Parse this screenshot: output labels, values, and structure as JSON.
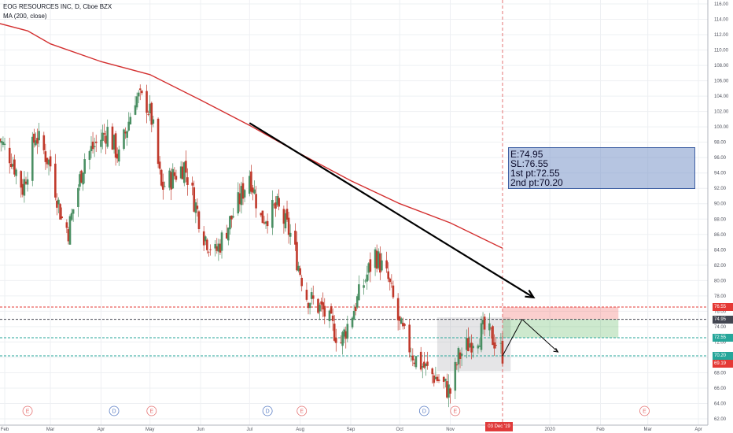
{
  "legend": {
    "title": "EOG RESOURCES INC, D, Cboe BZX",
    "indicator": "MA (200, close)"
  },
  "info_box": {
    "entry": "E:74.95",
    "stop": "SL:76.55",
    "pt1": "1st pt:72.55",
    "pt2": "2nd pt:70.20"
  },
  "date_flag": "03 Dec '19",
  "price_labels": [
    {
      "value": "76.55",
      "color": "#e53935"
    },
    {
      "value": "74.95",
      "color": "#434651"
    },
    {
      "value": "72.55",
      "color": "#26a69a"
    },
    {
      "value": "70.20",
      "color": "#26a69a"
    },
    {
      "value": "69.19",
      "color": "#e53935"
    }
  ],
  "colors": {
    "up": "#4a8f63",
    "down": "#c0392b",
    "ma": "#d32f2f",
    "grid": "#eef0f3"
  },
  "chart_data": {
    "type": "candlestick",
    "title": "EOG RESOURCES INC, D, Cboe BZX",
    "ylim": [
      62,
      116
    ],
    "y_ticks": [
      "62.00",
      "64.00",
      "66.00",
      "68.00",
      "70.00",
      "72.00",
      "74.00",
      "76.00",
      "78.00",
      "80.00",
      "82.00",
      "84.00",
      "86.00",
      "88.00",
      "90.00",
      "92.00",
      "94.00",
      "96.00",
      "98.00",
      "100.00",
      "102.00",
      "104.00",
      "106.00",
      "108.00",
      "110.00",
      "112.00",
      "114.00",
      "116.00"
    ],
    "x_ticks": [
      "Feb",
      "Mar",
      "Apr",
      "May",
      "Jun",
      "Jul",
      "Aug",
      "Sep",
      "Oct",
      "Nov",
      "2020",
      "Feb",
      "Mar",
      "Apr"
    ],
    "event_markers": [
      {
        "label": "E",
        "kind": "earnings"
      },
      {
        "label": "D",
        "kind": "dividend"
      },
      {
        "label": "E",
        "kind": "earnings"
      },
      {
        "label": "D",
        "kind": "dividend"
      },
      {
        "label": "E",
        "kind": "earnings"
      },
      {
        "label": "D",
        "kind": "dividend"
      },
      {
        "label": "E",
        "kind": "earnings"
      },
      {
        "label": "E",
        "kind": "earnings"
      }
    ],
    "price_path": [
      {
        "date": "2019-01-28",
        "close": 98.5
      },
      {
        "date": "2019-02-05",
        "close": 96.0
      },
      {
        "date": "2019-02-12",
        "close": 92.0
      },
      {
        "date": "2019-02-20",
        "close": 99.0
      },
      {
        "date": "2019-03-01",
        "close": 95.0
      },
      {
        "date": "2019-03-08",
        "close": 88.0
      },
      {
        "date": "2019-03-12",
        "close": 86.5
      },
      {
        "date": "2019-03-22",
        "close": 96.0
      },
      {
        "date": "2019-04-05",
        "close": 99.5
      },
      {
        "date": "2019-04-12",
        "close": 96.0
      },
      {
        "date": "2019-04-22",
        "close": 104.0
      },
      {
        "date": "2019-04-29",
        "close": 103.0
      },
      {
        "date": "2019-05-02",
        "close": 101.0
      },
      {
        "date": "2019-05-08",
        "close": 92.0
      },
      {
        "date": "2019-05-22",
        "close": 95.0
      },
      {
        "date": "2019-06-03",
        "close": 86.0
      },
      {
        "date": "2019-06-10",
        "close": 83.5
      },
      {
        "date": "2019-06-24",
        "close": 90.0
      },
      {
        "date": "2019-07-01",
        "close": 94.0
      },
      {
        "date": "2019-07-08",
        "close": 88.0
      },
      {
        "date": "2019-07-18",
        "close": 89.5
      },
      {
        "date": "2019-07-26",
        "close": 86.0
      },
      {
        "date": "2019-08-05",
        "close": 78.0
      },
      {
        "date": "2019-08-15",
        "close": 76.0
      },
      {
        "date": "2019-08-26",
        "close": 72.0
      },
      {
        "date": "2019-09-06",
        "close": 78.0
      },
      {
        "date": "2019-09-16",
        "close": 83.5
      },
      {
        "date": "2019-09-24",
        "close": 80.0
      },
      {
        "date": "2019-10-01",
        "close": 74.0
      },
      {
        "date": "2019-10-10",
        "close": 70.0
      },
      {
        "date": "2019-10-17",
        "close": 68.5
      },
      {
        "date": "2019-10-25",
        "close": 67.0
      },
      {
        "date": "2019-11-01",
        "close": 65.5
      },
      {
        "date": "2019-11-06",
        "close": 70.0
      },
      {
        "date": "2019-11-15",
        "close": 72.5
      },
      {
        "date": "2019-11-22",
        "close": 73.5
      },
      {
        "date": "2019-11-29",
        "close": 72.0
      },
      {
        "date": "2019-12-03",
        "close": 70.5
      }
    ],
    "moving_average": {
      "name": "MA (200, close)",
      "points": [
        {
          "date": "2019-01-28",
          "value": 113.5
        },
        {
          "date": "2019-02-15",
          "value": 112.5
        },
        {
          "date": "2019-03-01",
          "value": 110.8
        },
        {
          "date": "2019-04-01",
          "value": 108.5
        },
        {
          "date": "2019-05-01",
          "value": 106.8
        },
        {
          "date": "2019-06-01",
          "value": 103.5
        },
        {
          "date": "2019-07-01",
          "value": 100.2
        },
        {
          "date": "2019-08-01",
          "value": 96.5
        },
        {
          "date": "2019-09-01",
          "value": 93.0
        },
        {
          "date": "2019-10-01",
          "value": 90.0
        },
        {
          "date": "2019-11-01",
          "value": 87.5
        },
        {
          "date": "2019-12-03",
          "value": 84.2
        }
      ]
    },
    "levels": [
      {
        "label": "76.55",
        "value": 76.55,
        "color": "#e53935"
      },
      {
        "label": "74.95",
        "value": 74.95,
        "color": "#434651"
      },
      {
        "label": "72.55",
        "value": 72.55,
        "color": "#26a69a"
      },
      {
        "label": "70.20",
        "value": 70.2,
        "color": "#26a69a"
      },
      {
        "label": "69.19",
        "value": 69.19,
        "color": "#e53935"
      }
    ]
  }
}
